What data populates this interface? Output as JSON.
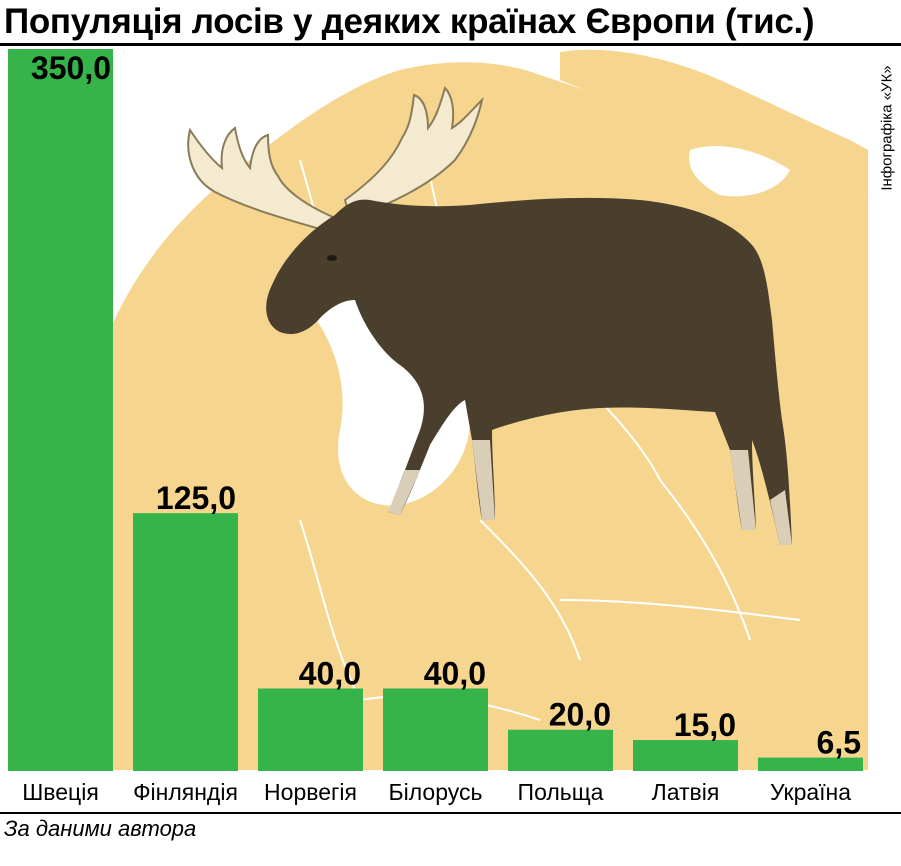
{
  "title": "Популяція лосів у деяких країнах Європи (тис.)",
  "credit": "Інфографіка «УК»",
  "source": "За даними автора",
  "colors": {
    "bar": "#36b44a",
    "map_land": "#f6d58f",
    "map_border": "#ffffff",
    "moose_body": "#4a3f2c",
    "moose_antler": "#f3ead0"
  },
  "chart_data": {
    "type": "bar",
    "title": "Популяція лосів у деяких країнах Європи (тис.)",
    "categories": [
      "Швеція",
      "Фінляндія",
      "Норвегія",
      "Білорусь",
      "Польща",
      "Латвія",
      "Україна"
    ],
    "values": [
      350.0,
      125.0,
      40.0,
      40.0,
      20.0,
      15.0,
      6.5
    ],
    "value_labels": [
      "350,0",
      "125,0",
      "40,0",
      "40,0",
      "20,0",
      "15,0",
      "6,5"
    ],
    "unit": "тис.",
    "ylim": [
      0,
      350
    ],
    "grid": false,
    "legend": "none",
    "background_image": "moose-on-europe-map"
  }
}
